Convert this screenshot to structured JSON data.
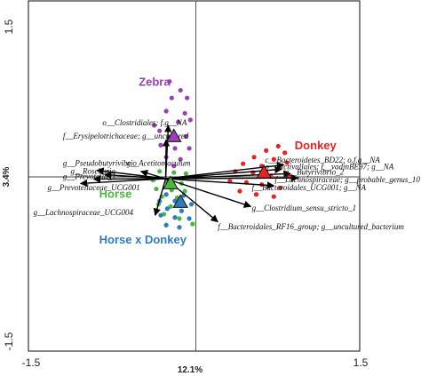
{
  "chart_data": {
    "type": "scatter",
    "title": "",
    "xlabel": "12.1%",
    "ylabel": "3.4%",
    "xlim": [
      -1.5,
      1.5
    ],
    "ylim": [
      -1.5,
      1.5
    ],
    "x_ticks": [
      {
        "value": -1.5,
        "label": "-1.5"
      },
      {
        "value": 1.5,
        "label": "1.5"
      }
    ],
    "y_ticks": [
      {
        "value": 1.5,
        "label": "1.5"
      },
      {
        "value": -1.5,
        "label": "-1.5"
      }
    ],
    "zero_lines": true,
    "groups": [
      {
        "name": "Zebra",
        "color": "#9b3fb5",
        "label_pos": {
          "x": -0.52,
          "y": 0.83
        },
        "centroid": {
          "x": -0.2,
          "y": 0.37
        },
        "samples": [
          {
            "x": -0.24,
            "y": 0.87
          },
          {
            "x": -0.14,
            "y": 0.79
          },
          {
            "x": -0.22,
            "y": 0.72
          },
          {
            "x": -0.08,
            "y": 0.72
          },
          {
            "x": -0.27,
            "y": 0.6
          },
          {
            "x": -0.1,
            "y": 0.58
          },
          {
            "x": -0.38,
            "y": 0.47
          },
          {
            "x": -0.16,
            "y": 0.5
          },
          {
            "x": -0.05,
            "y": 0.52
          },
          {
            "x": -0.33,
            "y": 0.42
          },
          {
            "x": -0.24,
            "y": 0.36
          },
          {
            "x": -0.09,
            "y": 0.37
          },
          {
            "x": -0.32,
            "y": 0.29
          },
          {
            "x": -0.19,
            "y": 0.26
          },
          {
            "x": -0.06,
            "y": 0.26
          },
          {
            "x": -0.27,
            "y": 0.18
          },
          {
            "x": -0.14,
            "y": 0.16
          },
          {
            "x": -0.2,
            "y": 0.1
          }
        ]
      },
      {
        "name": "Donkey",
        "color": "#e32424",
        "label_pos": {
          "x": 0.9,
          "y": 0.25
        },
        "centroid": {
          "x": 0.62,
          "y": 0.04
        },
        "samples": [
          {
            "x": 0.75,
            "y": 0.28
          },
          {
            "x": 0.64,
            "y": 0.24
          },
          {
            "x": 0.81,
            "y": 0.22
          },
          {
            "x": 0.53,
            "y": 0.18
          },
          {
            "x": 0.71,
            "y": 0.16
          },
          {
            "x": 0.83,
            "y": 0.13
          },
          {
            "x": 0.43,
            "y": 0.12
          },
          {
            "x": 0.6,
            "y": 0.1
          },
          {
            "x": 0.76,
            "y": 0.08
          },
          {
            "x": 0.36,
            "y": 0.05
          },
          {
            "x": 0.52,
            "y": 0.04
          },
          {
            "x": 0.68,
            "y": 0.01
          },
          {
            "x": 0.85,
            "y": 0.01
          },
          {
            "x": 0.31,
            "y": -0.04
          },
          {
            "x": 0.46,
            "y": -0.05
          },
          {
            "x": 0.6,
            "y": -0.07
          },
          {
            "x": 0.77,
            "y": -0.1
          },
          {
            "x": 0.4,
            "y": -0.13
          },
          {
            "x": 0.55,
            "y": -0.16
          },
          {
            "x": 0.71,
            "y": -0.18
          }
        ]
      },
      {
        "name": "Horse",
        "color": "#4ab83f",
        "label_pos": {
          "x": -0.88,
          "y": -0.19
        },
        "centroid": {
          "x": -0.23,
          "y": -0.06
        },
        "samples": [
          {
            "x": -0.33,
            "y": 0.05
          },
          {
            "x": -0.2,
            "y": 0.04
          },
          {
            "x": -0.09,
            "y": 0.03
          },
          {
            "x": -0.39,
            "y": -0.03
          },
          {
            "x": -0.26,
            "y": -0.05
          },
          {
            "x": -0.13,
            "y": -0.06
          },
          {
            "x": -0.36,
            "y": -0.11
          },
          {
            "x": -0.22,
            "y": -0.12
          },
          {
            "x": -0.1,
            "y": -0.13
          },
          {
            "x": -0.31,
            "y": -0.18
          },
          {
            "x": -0.17,
            "y": -0.19
          },
          {
            "x": -0.34,
            "y": -0.25
          },
          {
            "x": -0.23,
            "y": -0.27
          },
          {
            "x": -0.11,
            "y": -0.26
          },
          {
            "x": -0.29,
            "y": -0.34
          },
          {
            "x": -0.15,
            "y": -0.38
          },
          {
            "x": -0.03,
            "y": -0.43
          }
        ]
      },
      {
        "name": "Horse x Donkey",
        "color": "#2f7bbf",
        "label_pos": {
          "x": -0.88,
          "y": -0.61
        },
        "centroid": {
          "x": -0.14,
          "y": -0.23
        },
        "samples": [
          {
            "x": -0.27,
            "y": -0.16
          },
          {
            "x": -0.11,
            "y": -0.17
          },
          {
            "x": -0.33,
            "y": -0.22
          },
          {
            "x": -0.19,
            "y": -0.22
          },
          {
            "x": -0.04,
            "y": -0.25
          },
          {
            "x": -0.26,
            "y": -0.29
          },
          {
            "x": -0.13,
            "y": -0.31
          },
          {
            "x": -0.32,
            "y": -0.35
          },
          {
            "x": -0.19,
            "y": -0.37
          },
          {
            "x": -0.06,
            "y": -0.38
          },
          {
            "x": -0.27,
            "y": -0.44
          },
          {
            "x": -0.15,
            "y": -0.46
          }
        ]
      }
    ],
    "vectors": [
      {
        "label": "o__Clostridiales; f.g__NA",
        "x": -0.25,
        "y": 0.47,
        "lx": -0.85,
        "ly": 0.47,
        "anchor": "start"
      },
      {
        "label": "f__Erysipelotrichaceae; g__uncultured",
        "x": -0.27,
        "y": 0.34,
        "lx": -1.21,
        "ly": 0.35,
        "anchor": "start"
      },
      {
        "label": "g__Pseudobutyrivibrio",
        "x": -0.9,
        "y": 0.06,
        "lx": -1.21,
        "ly": 0.1,
        "anchor": "start"
      },
      {
        "label": "g__Acetitomaculum",
        "x": -0.5,
        "y": 0.05,
        "lx": -0.63,
        "ly": 0.1,
        "anchor": "start"
      },
      {
        "label": "g__Roseburia",
        "x": -0.83,
        "y": 0.02,
        "lx": -1.14,
        "ly": 0.03,
        "anchor": "start"
      },
      {
        "label": "g__Prevotella_1",
        "x": -0.93,
        "y": -0.02,
        "lx": -1.21,
        "ly": -0.02,
        "anchor": "start"
      },
      {
        "label": "g__Prevotellaceae_UCG001",
        "x": -1.05,
        "y": -0.06,
        "lx": -1.35,
        "ly": -0.12,
        "anchor": "start"
      },
      {
        "label": "g__Lachnospiraceae_UCG004",
        "x": -0.37,
        "y": -0.35,
        "lx": -1.48,
        "ly": -0.35,
        "anchor": "start"
      },
      {
        "label": "f__Bacteroidales_RF16_group; g__uncultured_bacterium",
        "x": 0.2,
        "y": -0.41,
        "lx": 0.2,
        "ly": -0.48,
        "anchor": "start"
      },
      {
        "label": "g__Clostridium_sensu_stricto_1",
        "x": 0.5,
        "y": -0.27,
        "lx": 0.51,
        "ly": -0.31,
        "anchor": "start"
      },
      {
        "label": "c__Bacteroidetes_BD22; o.f.g__NA",
        "x": 0.8,
        "y": 0.11,
        "lx": 0.63,
        "ly": 0.13,
        "anchor": "start"
      },
      {
        "label": "o__Victivallales; f__vadinBE97; g__NA",
        "x": 0.78,
        "y": 0.07,
        "lx": 0.63,
        "ly": 0.07,
        "anchor": "start"
      },
      {
        "label": "g__Butyrivibrio_2",
        "x": 0.86,
        "y": 0.03,
        "lx": 0.81,
        "ly": 0.02,
        "anchor": "start"
      },
      {
        "label": "f__Lachnospiraceae; g__probable_genus_10",
        "x": 0.93,
        "y": -0.01,
        "lx": 0.72,
        "ly": -0.05,
        "anchor": "start"
      },
      {
        "label": "f__Bacteroidales_UCG001; g__NA",
        "x": 0.71,
        "y": -0.08,
        "lx": 0.51,
        "ly": -0.12,
        "anchor": "start"
      }
    ]
  }
}
